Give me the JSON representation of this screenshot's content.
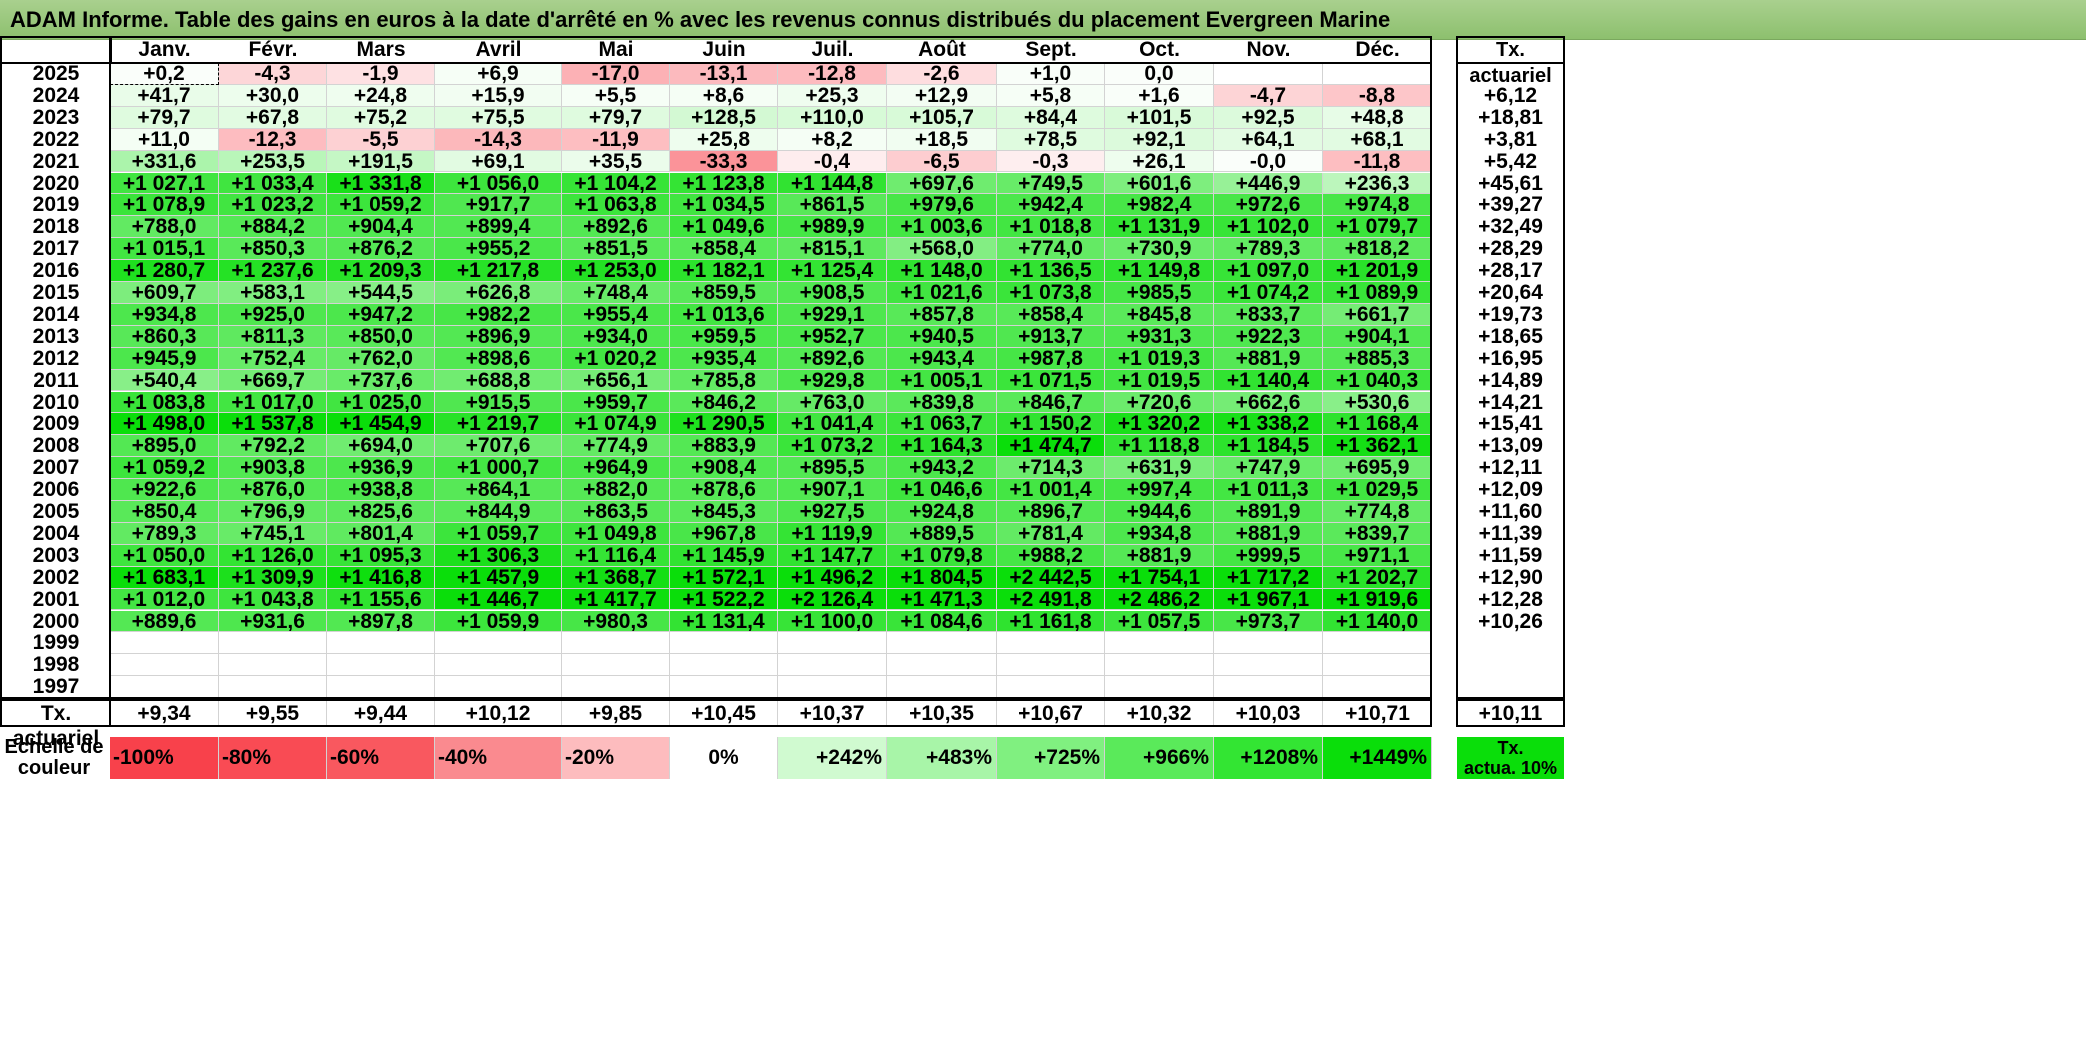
{
  "title": "ADAM Informe. Table des gains en euros à la date d'arrêté en % avec les revenus connus distribués du placement Evergreen Marine",
  "months": [
    "Janv.",
    "Févr.",
    "Mars",
    "Avril",
    "Mai",
    "Juin",
    "Juil.",
    "Août",
    "Sept.",
    "Oct.",
    "Nov.",
    "Déc."
  ],
  "tx_header": "Tx. actuariel",
  "rows": [
    {
      "year": "2025",
      "values": [
        "+0,2",
        "-4,3",
        "-1,9",
        "+6,9",
        "-17,0",
        "-13,1",
        "-12,8",
        "-2,6",
        "+1,0",
        "0,0",
        "",
        ""
      ],
      "tx": ""
    },
    {
      "year": "2024",
      "values": [
        "+41,7",
        "+30,0",
        "+24,8",
        "+15,9",
        "+5,5",
        "+8,6",
        "+25,3",
        "+12,9",
        "+5,8",
        "+1,6",
        "-4,7",
        "-8,8"
      ],
      "tx": "+6,12"
    },
    {
      "year": "2023",
      "values": [
        "+79,7",
        "+67,8",
        "+75,2",
        "+75,5",
        "+79,7",
        "+128,5",
        "+110,0",
        "+105,7",
        "+84,4",
        "+101,5",
        "+92,5",
        "+48,8"
      ],
      "tx": "+18,81"
    },
    {
      "year": "2022",
      "values": [
        "+11,0",
        "-12,3",
        "-5,5",
        "-14,3",
        "-11,9",
        "+25,8",
        "+8,2",
        "+18,5",
        "+78,5",
        "+92,1",
        "+64,1",
        "+68,1"
      ],
      "tx": "+3,81"
    },
    {
      "year": "2021",
      "values": [
        "+331,6",
        "+253,5",
        "+191,5",
        "+69,1",
        "+35,5",
        "-33,3",
        "-0,4",
        "-6,5",
        "-0,3",
        "+26,1",
        "-0,0",
        "-11,8"
      ],
      "tx": "+5,42"
    },
    {
      "year": "2020",
      "values": [
        "+1 027,1",
        "+1 033,4",
        "+1 331,8",
        "+1 056,0",
        "+1 104,2",
        "+1 123,8",
        "+1 144,8",
        "+697,6",
        "+749,5",
        "+601,6",
        "+446,9",
        "+236,3"
      ],
      "tx": "+45,61"
    },
    {
      "year": "2019",
      "values": [
        "+1 078,9",
        "+1 023,2",
        "+1 059,2",
        "+917,7",
        "+1 063,8",
        "+1 034,5",
        "+861,5",
        "+979,6",
        "+942,4",
        "+982,4",
        "+972,6",
        "+974,8"
      ],
      "tx": "+39,27"
    },
    {
      "year": "2018",
      "values": [
        "+788,0",
        "+884,2",
        "+904,4",
        "+899,4",
        "+892,6",
        "+1 049,6",
        "+989,9",
        "+1 003,6",
        "+1 018,8",
        "+1 131,9",
        "+1 102,0",
        "+1 079,7"
      ],
      "tx": "+32,49"
    },
    {
      "year": "2017",
      "values": [
        "+1 015,1",
        "+850,3",
        "+876,2",
        "+955,2",
        "+851,5",
        "+858,4",
        "+815,1",
        "+568,0",
        "+774,0",
        "+730,9",
        "+789,3",
        "+818,2"
      ],
      "tx": "+28,29"
    },
    {
      "year": "2016",
      "values": [
        "+1 280,7",
        "+1 237,6",
        "+1 209,3",
        "+1 217,8",
        "+1 253,0",
        "+1 182,1",
        "+1 125,4",
        "+1 148,0",
        "+1 136,5",
        "+1 149,8",
        "+1 097,0",
        "+1 201,9"
      ],
      "tx": "+28,17"
    },
    {
      "year": "2015",
      "values": [
        "+609,7",
        "+583,1",
        "+544,5",
        "+626,8",
        "+748,4",
        "+859,5",
        "+908,5",
        "+1 021,6",
        "+1 073,8",
        "+985,5",
        "+1 074,2",
        "+1 089,9"
      ],
      "tx": "+20,64"
    },
    {
      "year": "2014",
      "values": [
        "+934,8",
        "+925,0",
        "+947,2",
        "+982,2",
        "+955,4",
        "+1 013,6",
        "+929,1",
        "+857,8",
        "+858,4",
        "+845,8",
        "+833,7",
        "+661,7"
      ],
      "tx": "+19,73"
    },
    {
      "year": "2013",
      "values": [
        "+860,3",
        "+811,3",
        "+850,0",
        "+896,9",
        "+934,0",
        "+959,5",
        "+952,7",
        "+940,5",
        "+913,7",
        "+931,3",
        "+922,3",
        "+904,1"
      ],
      "tx": "+18,65"
    },
    {
      "year": "2012",
      "values": [
        "+945,9",
        "+752,4",
        "+762,0",
        "+898,6",
        "+1 020,2",
        "+935,4",
        "+892,6",
        "+943,4",
        "+987,8",
        "+1 019,3",
        "+881,9",
        "+885,3"
      ],
      "tx": "+16,95"
    },
    {
      "year": "2011",
      "values": [
        "+540,4",
        "+669,7",
        "+737,6",
        "+688,8",
        "+656,1",
        "+785,8",
        "+929,8",
        "+1 005,1",
        "+1 071,5",
        "+1 019,5",
        "+1 140,4",
        "+1 040,3"
      ],
      "tx": "+14,89"
    },
    {
      "year": "2010",
      "values": [
        "+1 083,8",
        "+1 017,0",
        "+1 025,0",
        "+915,5",
        "+959,7",
        "+846,2",
        "+763,0",
        "+839,8",
        "+846,7",
        "+720,6",
        "+662,6",
        "+530,6"
      ],
      "tx": "+14,21"
    },
    {
      "year": "2009",
      "values": [
        "+1 498,0",
        "+1 537,8",
        "+1 454,9",
        "+1 219,7",
        "+1 074,9",
        "+1 290,5",
        "+1 041,4",
        "+1 063,7",
        "+1 150,2",
        "+1 320,2",
        "+1 338,2",
        "+1 168,4"
      ],
      "tx": "+15,41"
    },
    {
      "year": "2008",
      "values": [
        "+895,0",
        "+792,2",
        "+694,0",
        "+707,6",
        "+774,9",
        "+883,9",
        "+1 073,2",
        "+1 164,3",
        "+1 474,7",
        "+1 118,8",
        "+1 184,5",
        "+1 362,1"
      ],
      "tx": "+13,09"
    },
    {
      "year": "2007",
      "values": [
        "+1 059,2",
        "+903,8",
        "+936,9",
        "+1 000,7",
        "+964,9",
        "+908,4",
        "+895,5",
        "+943,2",
        "+714,3",
        "+631,9",
        "+747,9",
        "+695,9"
      ],
      "tx": "+12,11"
    },
    {
      "year": "2006",
      "values": [
        "+922,6",
        "+876,0",
        "+938,8",
        "+864,1",
        "+882,0",
        "+878,6",
        "+907,1",
        "+1 046,6",
        "+1 001,4",
        "+997,4",
        "+1 011,3",
        "+1 029,5"
      ],
      "tx": "+12,09"
    },
    {
      "year": "2005",
      "values": [
        "+850,4",
        "+796,9",
        "+825,6",
        "+844,9",
        "+863,5",
        "+845,3",
        "+927,5",
        "+924,8",
        "+896,7",
        "+944,6",
        "+891,9",
        "+774,8"
      ],
      "tx": "+11,60"
    },
    {
      "year": "2004",
      "values": [
        "+789,3",
        "+745,1",
        "+801,4",
        "+1 059,7",
        "+1 049,8",
        "+967,8",
        "+1 119,9",
        "+889,5",
        "+781,4",
        "+934,8",
        "+881,9",
        "+839,7"
      ],
      "tx": "+11,39"
    },
    {
      "year": "2003",
      "values": [
        "+1 050,0",
        "+1 126,0",
        "+1 095,3",
        "+1 306,3",
        "+1 116,4",
        "+1 145,9",
        "+1 147,7",
        "+1 079,8",
        "+988,2",
        "+881,9",
        "+999,5",
        "+971,1"
      ],
      "tx": "+11,59"
    },
    {
      "year": "2002",
      "values": [
        "+1 683,1",
        "+1 309,9",
        "+1 416,8",
        "+1 457,9",
        "+1 368,7",
        "+1 572,1",
        "+1 496,2",
        "+1 804,5",
        "+2 442,5",
        "+1 754,1",
        "+1 717,2",
        "+1 202,7"
      ],
      "tx": "+12,90"
    },
    {
      "year": "2001",
      "values": [
        "+1 012,0",
        "+1 043,8",
        "+1 155,6",
        "+1 446,7",
        "+1 417,7",
        "+1 522,2",
        "+2 126,4",
        "+1 471,3",
        "+2 491,8",
        "+2 486,2",
        "+1 967,1",
        "+1 919,6"
      ],
      "tx": "+12,28"
    },
    {
      "year": "2000",
      "values": [
        "+889,6",
        "+931,6",
        "+897,8",
        "+1 059,9",
        "+980,3",
        "+1 131,4",
        "+1 100,0",
        "+1 084,6",
        "+1 161,8",
        "+1 057,5",
        "+973,7",
        "+1 140,0"
      ],
      "tx": "+10,26"
    },
    {
      "year": "1999",
      "values": [
        "",
        "",
        "",
        "",
        "",
        "",
        "",
        "",
        "",
        "",
        "",
        ""
      ],
      "tx": ""
    },
    {
      "year": "1998",
      "values": [
        "",
        "",
        "",
        "",
        "",
        "",
        "",
        "",
        "",
        "",
        "",
        ""
      ],
      "tx": ""
    },
    {
      "year": "1997",
      "values": [
        "",
        "",
        "",
        "",
        "",
        "",
        "",
        "",
        "",
        "",
        "",
        ""
      ],
      "tx": ""
    }
  ],
  "footer": {
    "label": "Tx. actuariel",
    "values": [
      "+9,34",
      "+9,55",
      "+9,44",
      "+10,12",
      "+9,85",
      "+10,45",
      "+10,37",
      "+10,35",
      "+10,67",
      "+10,32",
      "+10,03",
      "+10,71"
    ],
    "tx": "+10,11"
  },
  "legend": {
    "label_line1": "Echelle de",
    "label_line2": "couleur",
    "items": [
      {
        "text": "-100%",
        "color": "#f8414b",
        "align": "left"
      },
      {
        "text": "-80%",
        "color": "#f94b54",
        "align": "left"
      },
      {
        "text": "-60%",
        "color": "#f9585f",
        "align": "left"
      },
      {
        "text": "-40%",
        "color": "#fa8a8f",
        "align": "left"
      },
      {
        "text": "-20%",
        "color": "#fdbcbe",
        "align": "left"
      },
      {
        "text": "0%",
        "color": "#ffffff",
        "align": "center"
      },
      {
        "text": "+242%",
        "color": "#d0fad0",
        "align": "right"
      },
      {
        "text": "+483%",
        "color": "#a8f5a8",
        "align": "right"
      },
      {
        "text": "+725%",
        "color": "#80f080",
        "align": "right"
      },
      {
        "text": "+966%",
        "color": "#5aea5a",
        "align": "right"
      },
      {
        "text": "+1208%",
        "color": "#33e533",
        "align": "right"
      },
      {
        "text": "+1449%",
        "color": "#0ade0a",
        "align": "right"
      }
    ],
    "tx_line1": "Tx.",
    "tx_line2": "actua. 10%",
    "tx_color": "#0ade0a"
  }
}
